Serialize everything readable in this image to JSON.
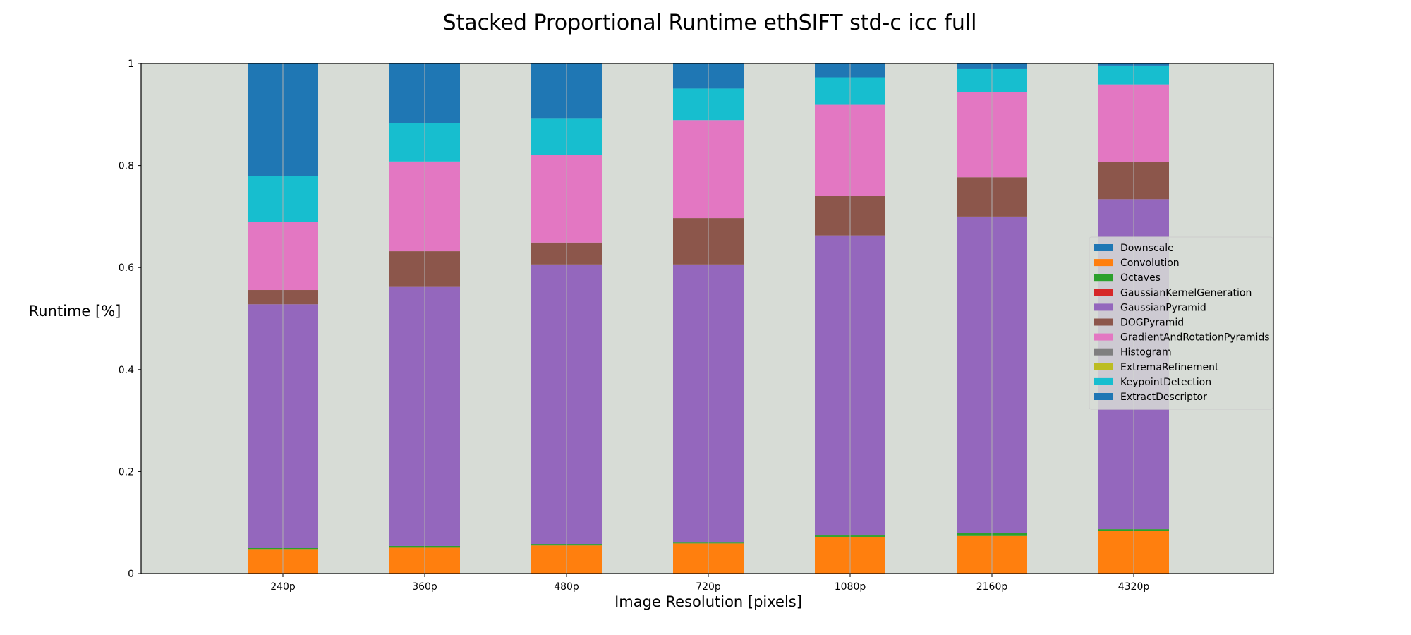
{
  "chart_data": {
    "type": "bar",
    "stacked": true,
    "title": "Stacked Proportional Runtime ethSIFT std-c icc full",
    "xlabel": "Image Resolution [pixels]",
    "ylabel": "Runtime [%]",
    "ylim": [
      0,
      1
    ],
    "yticks": [
      "0",
      "0.2",
      "0.4",
      "0.6",
      "0.8",
      "1"
    ],
    "ytick_values": [
      0,
      0.2,
      0.4,
      0.6,
      0.8,
      1
    ],
    "categories": [
      "240p",
      "360p",
      "480p",
      "720p",
      "1080p",
      "2160p",
      "4320p"
    ],
    "grid": "vertical",
    "legend_position": "right",
    "plot_background": "#d7dcd6",
    "series": [
      {
        "name": "Downscale",
        "color": "#1f77b4",
        "values": [
          0.0,
          0.0,
          0.0,
          0.0,
          0.0,
          0.0,
          0.0
        ]
      },
      {
        "name": "Convolution",
        "color": "#ff7f0e",
        "values": [
          0.048,
          0.052,
          0.055,
          0.059,
          0.072,
          0.075,
          0.083
        ]
      },
      {
        "name": "Octaves",
        "color": "#2ca02c",
        "values": [
          0.003,
          0.002,
          0.003,
          0.003,
          0.004,
          0.004,
          0.004
        ]
      },
      {
        "name": "GaussianKernelGeneration",
        "color": "#d62728",
        "values": [
          0.0,
          0.0,
          0.0,
          0.0,
          0.0,
          0.0,
          0.0
        ]
      },
      {
        "name": "GaussianPyramid",
        "color": "#9467bd",
        "values": [
          0.477,
          0.508,
          0.548,
          0.544,
          0.587,
          0.621,
          0.647
        ]
      },
      {
        "name": "DOGPyramid",
        "color": "#8c564b",
        "values": [
          0.028,
          0.07,
          0.043,
          0.091,
          0.077,
          0.077,
          0.073
        ]
      },
      {
        "name": "GradientAndRotationPyramids",
        "color": "#e377c2",
        "values": [
          0.133,
          0.176,
          0.172,
          0.192,
          0.179,
          0.167,
          0.152
        ]
      },
      {
        "name": "Histogram",
        "color": "#7f7f7f",
        "values": [
          0.0,
          0.0,
          0.0,
          0.0,
          0.0,
          0.0,
          0.0
        ]
      },
      {
        "name": "ExtremaRefinement",
        "color": "#bcbd22",
        "values": [
          0.0,
          0.0,
          0.0,
          0.0,
          0.0,
          0.0,
          0.0
        ]
      },
      {
        "name": "KeypointDetection",
        "color": "#17becf",
        "values": [
          0.091,
          0.075,
          0.072,
          0.062,
          0.054,
          0.045,
          0.037
        ]
      },
      {
        "name": "ExtractDescriptor",
        "color": "#1f77b4",
        "values": [
          0.22,
          0.117,
          0.107,
          0.049,
          0.027,
          0.011,
          0.004
        ]
      }
    ]
  }
}
